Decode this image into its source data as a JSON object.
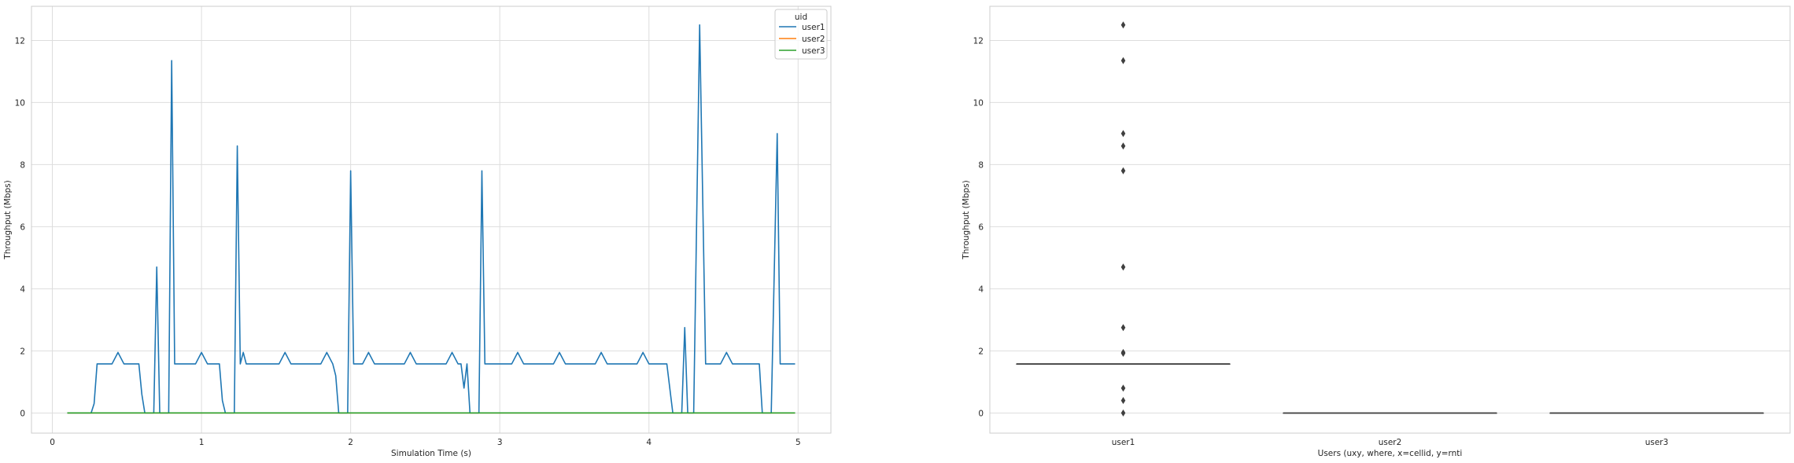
{
  "chart_data": [
    {
      "type": "line",
      "title": "",
      "xlabel": "Simulation Time (s)",
      "ylabel": "Throughput (Mbps)",
      "xlim": [
        -0.14,
        5.22
      ],
      "ylim": [
        -0.65,
        13.1
      ],
      "xticks": [
        0,
        1,
        2,
        3,
        4,
        5
      ],
      "yticks": [
        0,
        2,
        4,
        6,
        8,
        10,
        12
      ],
      "grid": true,
      "legend": {
        "title": "uid",
        "placement": "top-right"
      },
      "colors": {
        "user1": "#1f77b4",
        "user2": "#ff7f0e",
        "user3": "#2ca02c"
      },
      "series": [
        {
          "name": "user1",
          "x": [
            0.1,
            0.26,
            0.28,
            0.3,
            0.4,
            0.44,
            0.48,
            0.58,
            0.6,
            0.62,
            0.68,
            0.7,
            0.72,
            0.78,
            0.8,
            0.82,
            0.96,
            1.0,
            1.04,
            1.12,
            1.14,
            1.16,
            1.22,
            1.24,
            1.26,
            1.28,
            1.3,
            1.52,
            1.56,
            1.6,
            1.8,
            1.84,
            1.88,
            1.9,
            1.92,
            1.98,
            2.0,
            2.02,
            2.08,
            2.12,
            2.16,
            2.36,
            2.4,
            2.44,
            2.64,
            2.68,
            2.72,
            2.74,
            2.76,
            2.78,
            2.8,
            2.82,
            2.86,
            2.88,
            2.9,
            3.08,
            3.12,
            3.16,
            3.36,
            3.4,
            3.44,
            3.64,
            3.68,
            3.72,
            3.92,
            3.96,
            4.0,
            4.12,
            4.16,
            4.22,
            4.24,
            4.26,
            4.3,
            4.34,
            4.38,
            4.48,
            4.52,
            4.56,
            4.74,
            4.76,
            4.82,
            4.86,
            4.88,
            4.98
          ],
          "y": [
            0,
            0,
            0.3,
            1.58,
            1.58,
            1.95,
            1.58,
            1.58,
            0.6,
            0,
            0,
            4.7,
            0,
            0,
            11.35,
            1.58,
            1.58,
            1.95,
            1.58,
            1.58,
            0.4,
            0,
            0,
            8.6,
            1.58,
            1.95,
            1.58,
            1.58,
            1.95,
            1.58,
            1.58,
            1.95,
            1.58,
            1.2,
            0,
            0,
            7.8,
            1.58,
            1.58,
            1.95,
            1.58,
            1.58,
            1.95,
            1.58,
            1.58,
            1.95,
            1.58,
            1.58,
            0.8,
            1.58,
            0,
            0,
            0,
            7.8,
            1.58,
            1.58,
            1.95,
            1.58,
            1.58,
            1.95,
            1.58,
            1.58,
            1.95,
            1.58,
            1.58,
            1.95,
            1.58,
            1.58,
            0,
            0,
            2.75,
            0,
            0,
            12.5,
            1.58,
            1.58,
            1.95,
            1.58,
            1.58,
            0,
            0,
            9.0,
            1.58,
            1.58
          ]
        },
        {
          "name": "user2",
          "x": [
            0.1,
            4.98
          ],
          "y": [
            0,
            0
          ]
        },
        {
          "name": "user3",
          "x": [
            0.1,
            4.98
          ],
          "y": [
            0,
            0
          ]
        }
      ]
    },
    {
      "type": "box",
      "title": "",
      "xlabel": "Users (uxy, where, x=cellid, y=rnti",
      "ylabel": "Throughput (Mbps)",
      "ylim": [
        -0.65,
        13.1
      ],
      "yticks": [
        0,
        2,
        4,
        6,
        8,
        10,
        12
      ],
      "categories": [
        "user1",
        "user2",
        "user3"
      ],
      "grid": true,
      "boxes": [
        {
          "name": "user1",
          "median": 1.58,
          "q1": 1.58,
          "q3": 1.58,
          "outliers": [
            12.5,
            11.35,
            9.0,
            8.6,
            7.8,
            4.7,
            2.75,
            1.95,
            1.92,
            0.8,
            0.4,
            0
          ]
        },
        {
          "name": "user2",
          "median": 0,
          "q1": 0,
          "q3": 0,
          "outliers": []
        },
        {
          "name": "user3",
          "median": 0,
          "q1": 0,
          "q3": 0,
          "outliers": []
        }
      ]
    }
  ]
}
